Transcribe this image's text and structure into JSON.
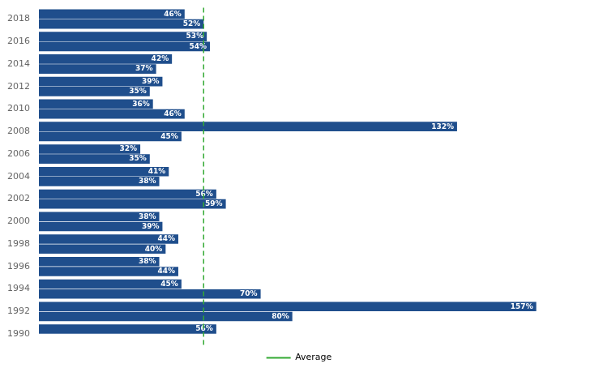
{
  "chart_data": {
    "type": "bar",
    "orientation": "horizontal",
    "categories": [
      "2018",
      "2016",
      "2014",
      "2012",
      "2010",
      "2008",
      "2006",
      "2004",
      "2002",
      "2000",
      "1998",
      "1996",
      "1994",
      "1992",
      "1990"
    ],
    "series": [
      {
        "color": "#1F4E8C",
        "values": [
          46,
          53,
          42,
          39,
          36,
          132,
          32,
          41,
          56,
          38,
          44,
          38,
          45,
          157,
          56
        ],
        "value_labels": [
          "46%",
          "53%",
          "42%",
          "39%",
          "36%",
          "132%",
          "32%",
          "41%",
          "56%",
          "38%",
          "44%",
          "38%",
          "45%",
          "157%",
          "56%"
        ]
      },
      {
        "color": "#1F4E8C",
        "values": [
          52,
          54,
          37,
          35,
          46,
          45,
          35,
          38,
          59,
          39,
          40,
          44,
          70,
          80,
          null
        ],
        "value_labels": [
          "52%",
          "54%",
          "37%",
          "35%",
          "46%",
          "45%",
          "35%",
          "38%",
          "59%",
          "39%",
          "40%",
          "44%",
          "70%",
          "80%",
          null
        ]
      }
    ],
    "xlim": [
      0,
      175
    ],
    "data_labels": true,
    "tick_labels": "y",
    "grid": false,
    "legend": "bottom",
    "reference_line": {
      "x": 52,
      "name": "Average",
      "color": "#33AA33",
      "line_style": "dashed"
    }
  }
}
